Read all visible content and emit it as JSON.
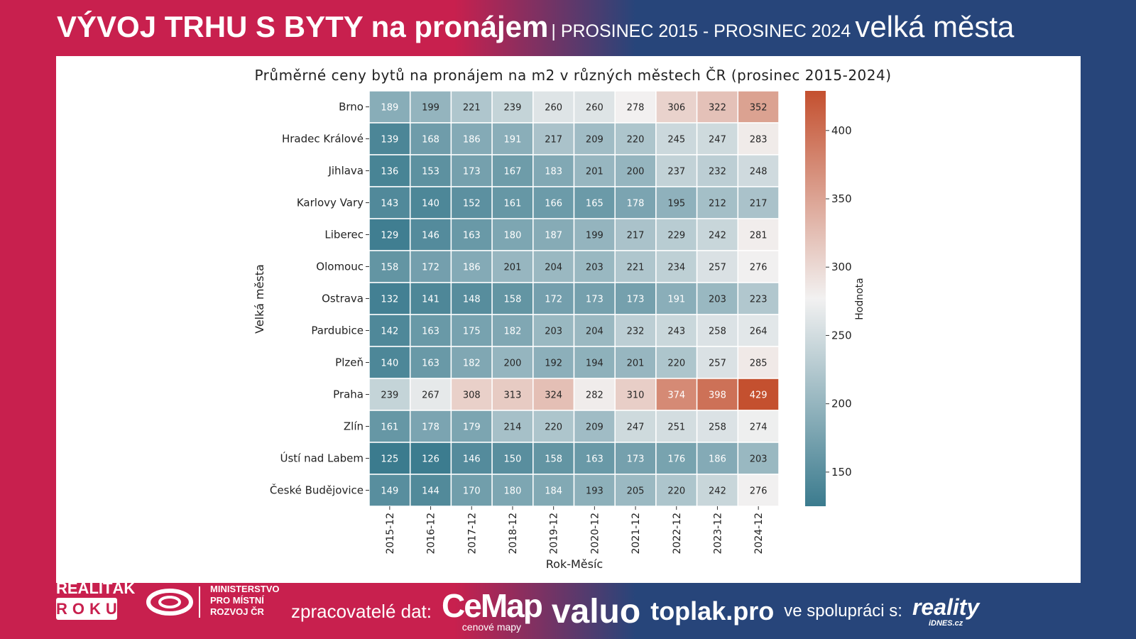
{
  "header": {
    "title": "VÝVOJ TRHU S BYTY na pronájem",
    "period": "| PROSINEC 2015 - PROSINEC 2024",
    "segment": "velká města"
  },
  "footer": {
    "realitak": "REALIŤÁK",
    "roku": "ROKU",
    "ministry": [
      "MINISTERSTVO",
      "PRO MÍSTNÍ",
      "ROZVOJ ČR"
    ],
    "processors_label": "zpracovatelé dat:",
    "cemap": "CeMap",
    "cemap_sub": "cenové mapy",
    "valuo": "valuo",
    "toplak": "toplak.pro",
    "cooperation_label": "ve spolupráci s:",
    "reality": "reality",
    "reality_sub": "iDNES.cz"
  },
  "chart_data": {
    "type": "heatmap",
    "title": "Průměrné ceny bytů na pronájem na m2 v různých městech ČR (prosinec 2015-2024)",
    "xlabel": "Rok-Měsíc",
    "ylabel": "Velká města",
    "colorbar_label": "Hodnota",
    "colorbar_range": [
      125,
      429
    ],
    "colorbar_ticks": [
      150,
      200,
      250,
      300,
      350,
      400
    ],
    "colors": {
      "low": "#3b7b8e",
      "mid": "#f2f1f1",
      "high": "#c4502f"
    },
    "x": [
      "2015-12",
      "2016-12",
      "2017-12",
      "2018-12",
      "2019-12",
      "2020-12",
      "2021-12",
      "2022-12",
      "2023-12",
      "2024-12"
    ],
    "y": [
      "Brno",
      "Hradec Králové",
      "Jihlava",
      "Karlovy Vary",
      "Liberec",
      "Olomouc",
      "Ostrava",
      "Pardubice",
      "Plzeň",
      "Praha",
      "Zlín",
      "Ústí nad Labem",
      "České Budějovice"
    ],
    "values": [
      [
        189,
        199,
        221,
        239,
        260,
        260,
        278,
        306,
        322,
        352
      ],
      [
        139,
        168,
        186,
        191,
        217,
        209,
        220,
        245,
        247,
        283
      ],
      [
        136,
        153,
        173,
        167,
        183,
        201,
        200,
        237,
        232,
        248
      ],
      [
        143,
        140,
        152,
        161,
        166,
        165,
        178,
        195,
        212,
        217
      ],
      [
        129,
        146,
        163,
        180,
        187,
        199,
        217,
        229,
        242,
        281
      ],
      [
        158,
        172,
        186,
        201,
        204,
        203,
        221,
        234,
        257,
        276
      ],
      [
        132,
        141,
        148,
        158,
        172,
        173,
        173,
        191,
        203,
        223
      ],
      [
        142,
        163,
        175,
        182,
        203,
        204,
        232,
        243,
        258,
        264
      ],
      [
        140,
        163,
        182,
        200,
        192,
        194,
        201,
        220,
        257,
        285
      ],
      [
        239,
        267,
        308,
        313,
        324,
        282,
        310,
        374,
        398,
        429
      ],
      [
        161,
        178,
        179,
        214,
        220,
        209,
        247,
        251,
        258,
        274
      ],
      [
        125,
        126,
        146,
        150,
        158,
        163,
        173,
        176,
        186,
        203
      ],
      [
        149,
        144,
        170,
        180,
        184,
        193,
        205,
        220,
        242,
        276
      ]
    ]
  }
}
